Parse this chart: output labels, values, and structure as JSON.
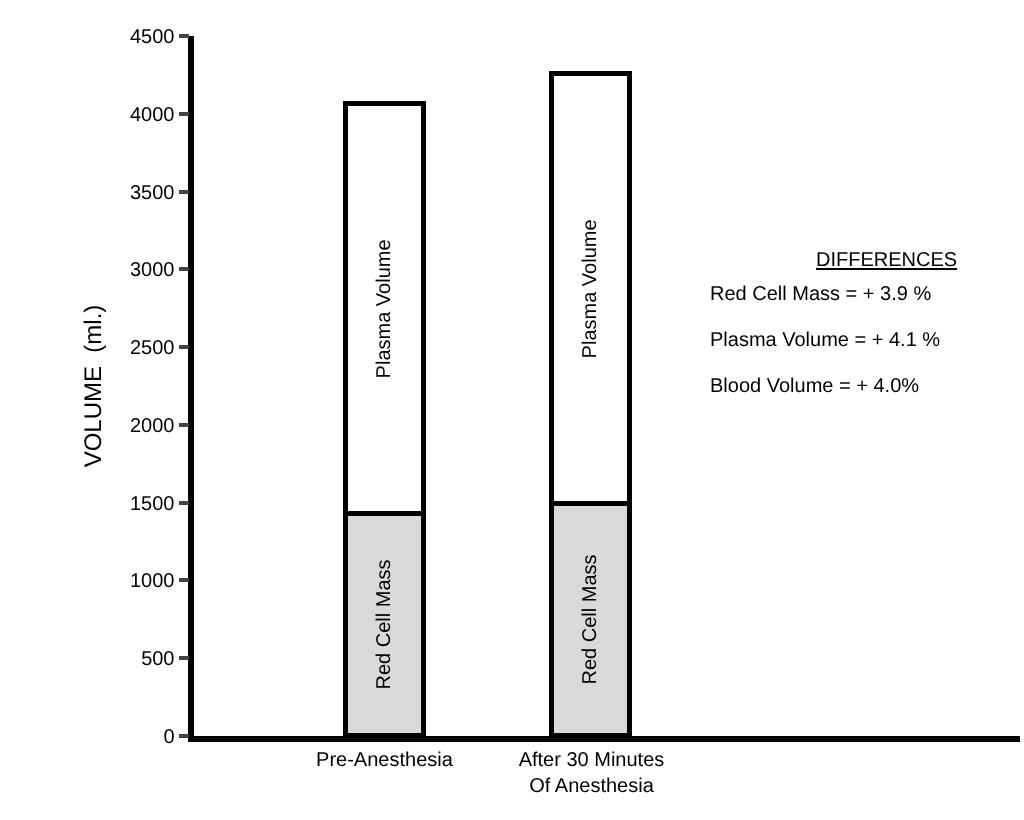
{
  "chart_data": {
    "type": "bar",
    "stacked": true,
    "ylabel": "VOLUME  (ml.)",
    "categories": [
      "Pre-Anesthesia",
      "After 30 Minutes\nOf Anesthesia"
    ],
    "series": [
      {
        "name": "Red Cell Mass",
        "color": "#d9d9d9",
        "values": [
          1430,
          1490
        ]
      },
      {
        "name": "Plasma Volume",
        "color": "#ffffff",
        "values": [
          2630,
          2760
        ]
      }
    ],
    "ylim": [
      0,
      4500
    ],
    "yticks": [
      0,
      500,
      1000,
      1500,
      2000,
      2500,
      3000,
      3500,
      4000,
      4500
    ],
    "grid": false,
    "legend": false,
    "annotations": [
      "DIFFERENCES",
      "Red Cell Mass = + 3.9 %",
      "Plasma Volume = + 4.1 %",
      "Blood Volume = + 4.0%"
    ]
  }
}
